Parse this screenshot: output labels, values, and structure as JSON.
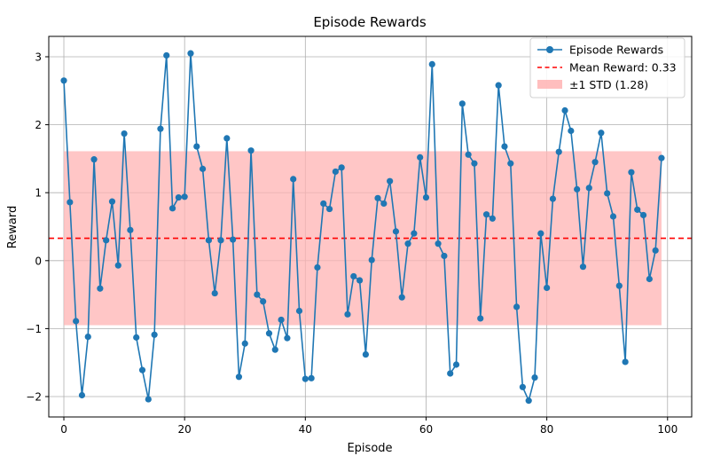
{
  "chart_data": {
    "type": "line",
    "title": "Episode Rewards",
    "xlabel": "Episode",
    "ylabel": "Reward",
    "xlim": [
      -2.5,
      104
    ],
    "ylim": [
      -2.3,
      3.3
    ],
    "xticks": [
      0,
      20,
      40,
      60,
      80,
      100
    ],
    "yticks": [
      -2,
      -1,
      0,
      1,
      2,
      3
    ],
    "grid": true,
    "legend_position": "top-right",
    "series": [
      {
        "name": "Episode Rewards",
        "color": "#1f77b4",
        "marker": "circle",
        "x": [
          0,
          1,
          2,
          3,
          4,
          5,
          6,
          7,
          8,
          9,
          10,
          11,
          12,
          13,
          14,
          15,
          16,
          17,
          18,
          19,
          20,
          21,
          22,
          23,
          24,
          25,
          26,
          27,
          28,
          29,
          30,
          31,
          32,
          33,
          34,
          35,
          36,
          37,
          38,
          39,
          40,
          41,
          42,
          43,
          44,
          45,
          46,
          47,
          48,
          49,
          50,
          51,
          52,
          53,
          54,
          55,
          56,
          57,
          58,
          59,
          60,
          61,
          62,
          63,
          64,
          65,
          66,
          67,
          68,
          69,
          70,
          71,
          72,
          73,
          74,
          75,
          76,
          77,
          78,
          79,
          80,
          81,
          82,
          83,
          84,
          85,
          86,
          87,
          88,
          89,
          90,
          91,
          92,
          93,
          94,
          95,
          96,
          97,
          98,
          99
        ],
        "values": [
          2.65,
          0.86,
          -0.89,
          -1.98,
          -1.12,
          1.49,
          -0.41,
          0.3,
          0.87,
          -0.07,
          1.87,
          0.45,
          -1.13,
          -1.61,
          -2.04,
          -1.09,
          1.94,
          3.02,
          0.77,
          0.93,
          0.94,
          3.05,
          1.68,
          1.35,
          0.3,
          -0.48,
          0.3,
          1.8,
          0.31,
          -1.71,
          -1.22,
          1.62,
          -0.5,
          -0.6,
          -1.07,
          -1.31,
          -0.87,
          -1.14,
          1.2,
          -0.74,
          -1.74,
          -1.73,
          -0.1,
          0.84,
          0.76,
          1.31,
          1.37,
          -0.79,
          -0.23,
          -0.29,
          -1.38,
          0.01,
          0.92,
          0.84,
          1.17,
          0.43,
          -0.54,
          0.25,
          0.4,
          1.52,
          0.93,
          2.89,
          0.25,
          0.07,
          -1.66,
          -1.53,
          2.31,
          1.56,
          1.43,
          -0.85,
          0.68,
          0.62,
          2.58,
          1.68,
          1.43,
          -0.68,
          -1.86,
          -2.06,
          -1.72,
          0.4,
          -0.4,
          0.91,
          1.6,
          2.21,
          1.91,
          1.05,
          -0.09,
          1.07,
          1.45,
          1.88,
          0.99,
          0.65,
          -0.37,
          -1.49,
          1.3,
          0.75,
          0.67,
          -0.27,
          0.15,
          1.51
        ]
      }
    ],
    "mean_line": {
      "label": "Mean Reward: 0.33",
      "value": 0.33,
      "color": "#ff0000",
      "style": "dashed"
    },
    "std_band": {
      "label": "±1 STD (1.28)",
      "lower": -0.95,
      "upper": 1.61,
      "x_start": 0,
      "x_end": 99,
      "color": "#ffb3b3"
    }
  }
}
